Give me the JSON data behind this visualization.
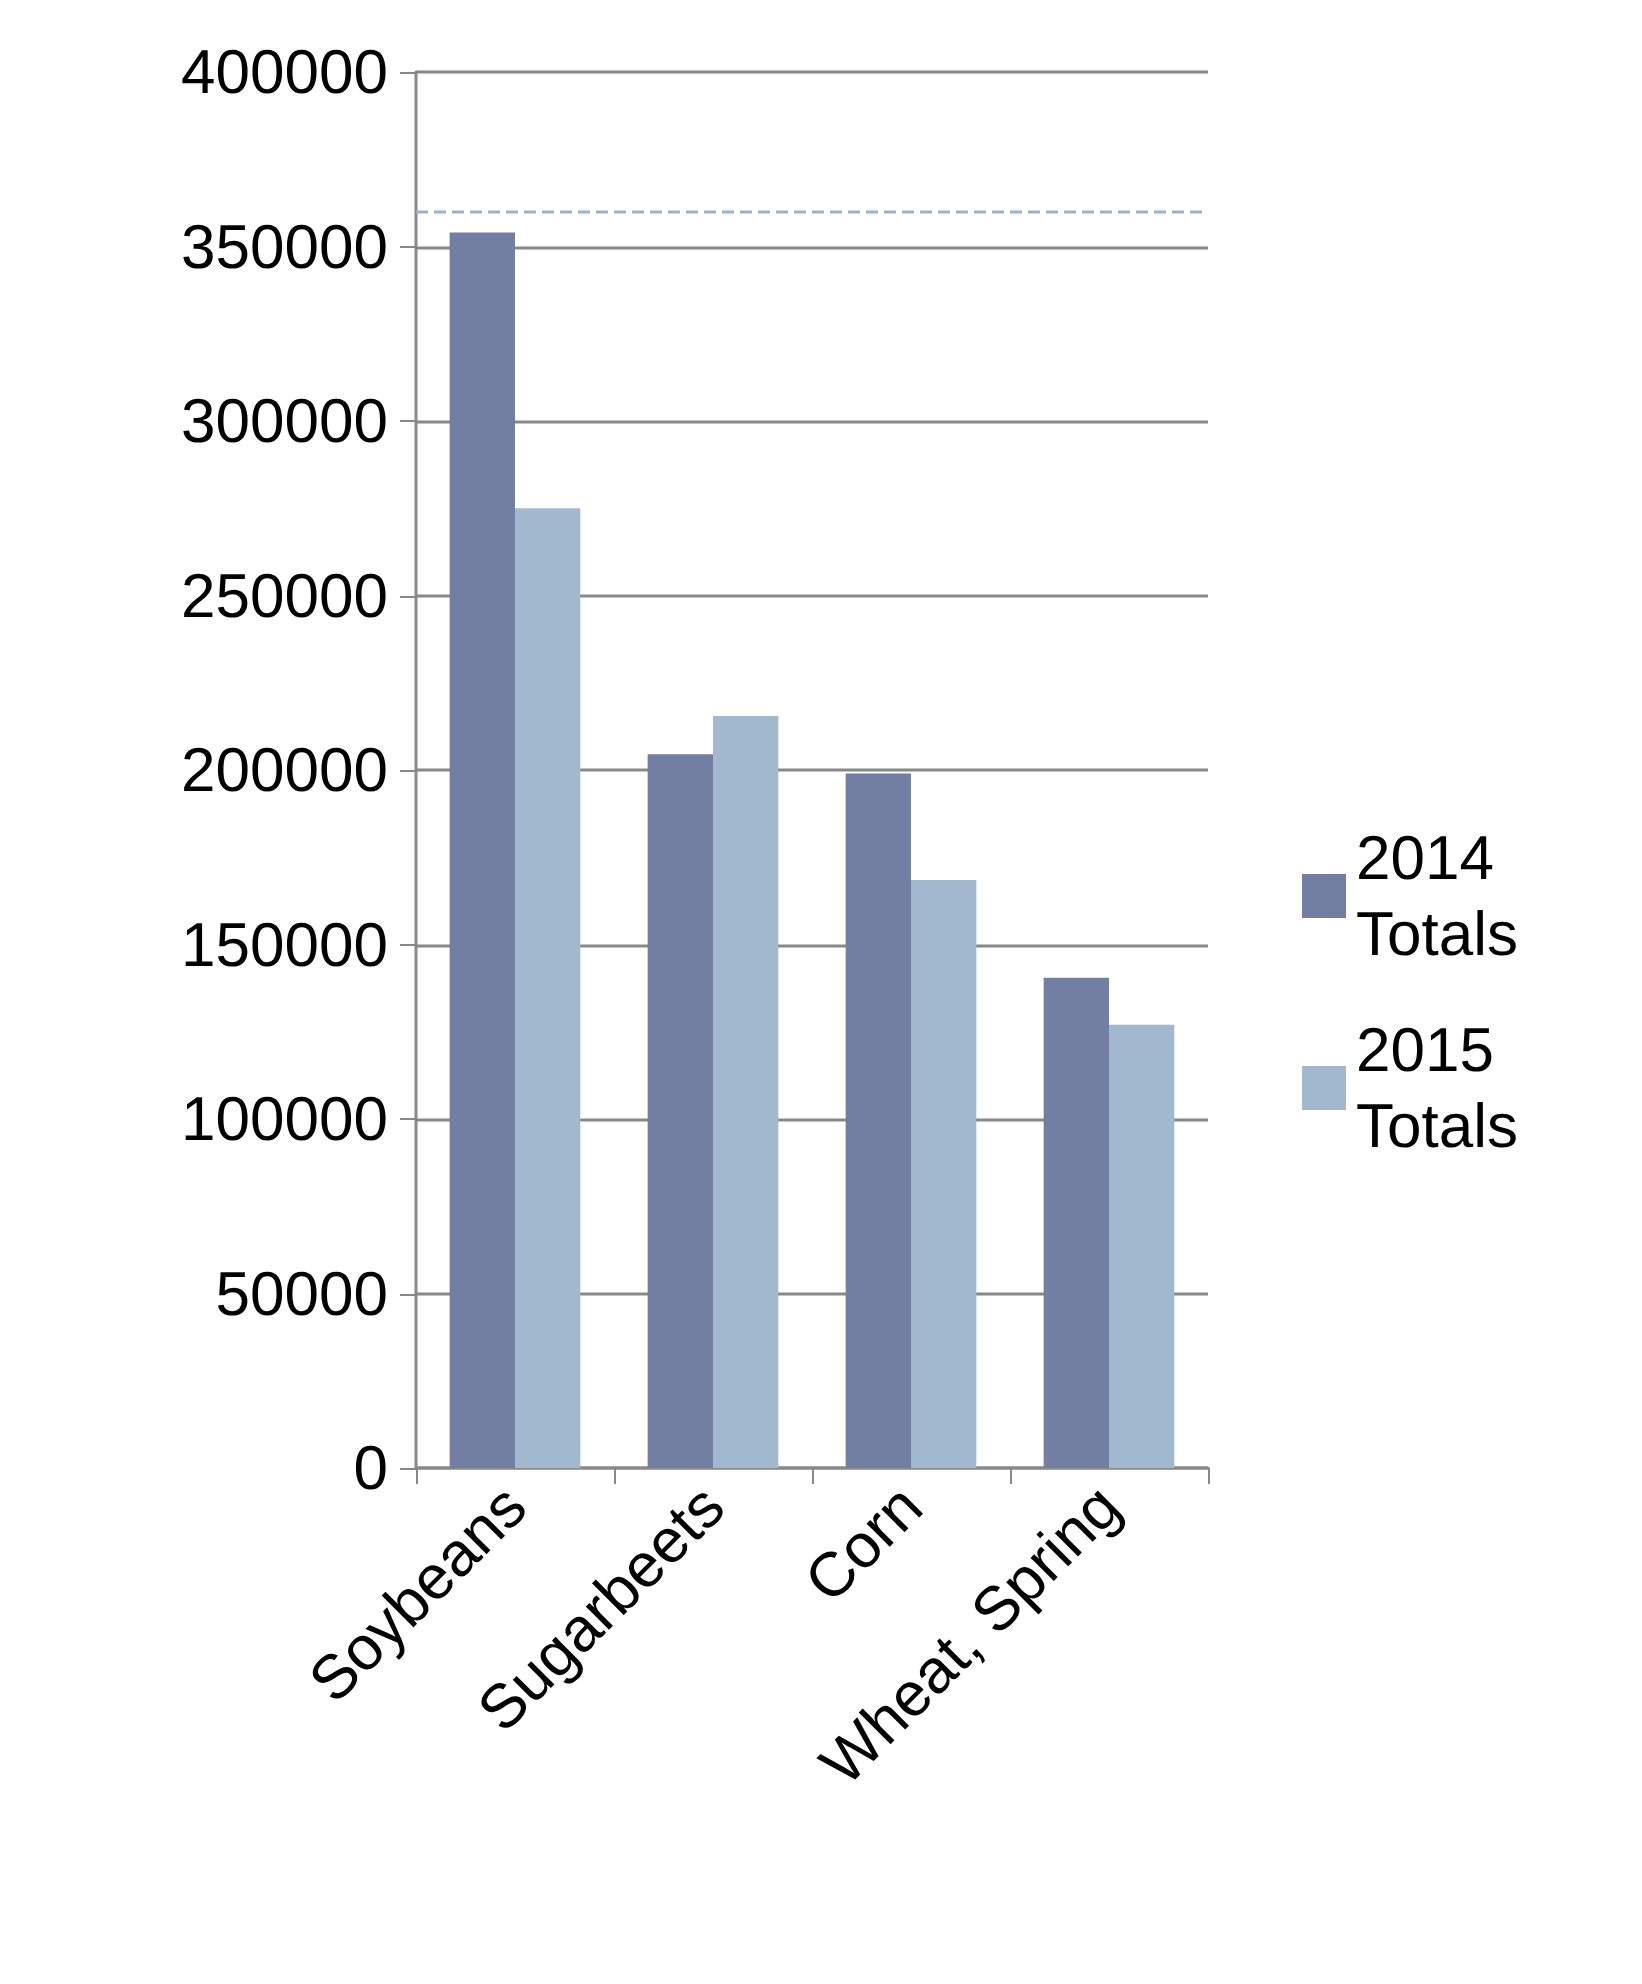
{
  "chart_data": {
    "type": "bar",
    "categories": [
      "Soybeans",
      "Sugarbeets",
      "Corn",
      "Wheat, Spring"
    ],
    "series": [
      {
        "name": "2014 Totals",
        "color": "#737ea3",
        "values": [
          354000,
          204500,
          199000,
          140500
        ]
      },
      {
        "name": "2015 Totals",
        "color": "#a2b8cf",
        "values": [
          275000,
          215500,
          168500,
          127000
        ]
      }
    ],
    "ylim": [
      0,
      400000
    ],
    "yticks": [
      0,
      50000,
      100000,
      150000,
      200000,
      250000,
      300000,
      350000,
      400000
    ],
    "grid": "y",
    "legend": "right",
    "ref_lines": [
      {
        "axis": "y",
        "value": 360000,
        "color": "#9ab3cc",
        "line_style": "dashed"
      }
    ]
  }
}
